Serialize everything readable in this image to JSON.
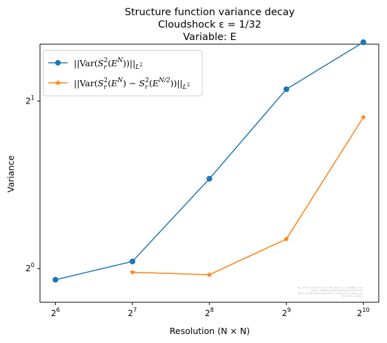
{
  "chart_data": {
    "type": "line",
    "title_lines": [
      "Structure function variance decay",
      "Cloudshock ε = 1/32",
      "Variable: E"
    ],
    "xlabel": "Resolution (N × N)",
    "ylabel": "Variance",
    "x_scale": "log2",
    "y_scale": "log2",
    "x_ticks": [
      64,
      128,
      256,
      512,
      1024
    ],
    "x_tick_exponents": [
      "6",
      "7",
      "8",
      "9",
      "10"
    ],
    "y_ticks": [
      1,
      2
    ],
    "y_tick_exponents": [
      "0",
      "1"
    ],
    "xlim": [
      55.7,
      1176
    ],
    "ylim": [
      0.87,
      2.53
    ],
    "grid": false,
    "legend_position": "top-left",
    "series": [
      {
        "name": "||Var(S_r^2(E^N))||_{L^2}",
        "color": "#1f77b4",
        "marker": "circle",
        "x": [
          64,
          128,
          256,
          512,
          1024
        ],
        "y": [
          0.955,
          1.03,
          1.45,
          2.1,
          2.55
        ]
      },
      {
        "name": "||Var(S_r^2(E^N) - S_r^2(E^{N/2}))||_{L^2}",
        "color": "#ff7f0e",
        "marker": "star",
        "x": [
          128,
          256,
          512,
          1024
        ],
        "y": [
          0.985,
          0.975,
          1.13,
          1.87
        ]
      }
    ],
    "watermark_lines": [
      "By Kjetil Olsen Lye 0.9706 kjetil.o.lye@gmail.com",
      "Commit: 6438b5124f071b9e35a9c1a45bc20c3f",
      "Repo: git@github.com:kjetil-lye/alsvinn_paper.git",
      "Hostname: galois"
    ]
  }
}
